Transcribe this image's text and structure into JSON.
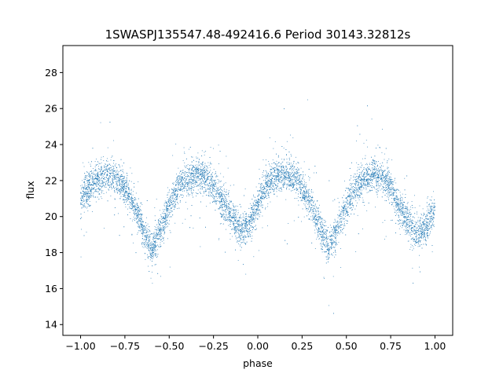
{
  "chart_data": {
    "type": "scatter",
    "title": "1SWASPJ135547.48-492416.6 Period 30143.32812s",
    "xlabel": "phase",
    "ylabel": "flux",
    "xlim": [
      -1.1,
      1.1
    ],
    "ylim": [
      13.4,
      29.5
    ],
    "xticks": [
      -1.0,
      -0.75,
      -0.5,
      -0.25,
      0.0,
      0.25,
      0.5,
      0.75,
      1.0
    ],
    "xtick_labels": [
      "−1.00",
      "−0.75",
      "−0.50",
      "−0.25",
      "0.00",
      "0.25",
      "0.50",
      "0.75",
      "1.00"
    ],
    "yticks": [
      14,
      16,
      18,
      20,
      22,
      24,
      26,
      28
    ],
    "ytick_labels": [
      "14",
      "16",
      "18",
      "20",
      "22",
      "24",
      "26",
      "28"
    ],
    "grid": false,
    "series": [
      {
        "color": "#1f77b4",
        "profile": {
          "x": [
            -1.0,
            -0.95,
            -0.9,
            -0.85,
            -0.8,
            -0.75,
            -0.7,
            -0.65,
            -0.6,
            -0.55,
            -0.5,
            -0.45,
            -0.4,
            -0.35,
            -0.3,
            -0.25,
            -0.2,
            -0.15,
            -0.1,
            -0.05,
            0.0,
            0.05,
            0.1,
            0.15,
            0.2,
            0.25,
            0.3,
            0.35,
            0.4,
            0.45,
            0.5,
            0.55,
            0.6,
            0.65,
            0.7,
            0.75,
            0.8,
            0.85,
            0.9,
            0.95,
            1.0
          ],
          "y": [
            21.0,
            21.6,
            22.1,
            22.3,
            22.2,
            21.6,
            20.6,
            19.4,
            18.2,
            19.2,
            20.6,
            21.6,
            22.1,
            22.3,
            22.2,
            21.7,
            20.8,
            20.0,
            19.2,
            19.5,
            20.8,
            21.7,
            22.2,
            22.4,
            22.2,
            21.6,
            20.7,
            19.5,
            18.2,
            19.3,
            20.6,
            21.6,
            22.1,
            22.3,
            22.2,
            21.6,
            20.6,
            19.6,
            19.0,
            19.4,
            20.5
          ]
        },
        "scatter_sigma": 0.45,
        "point_count": 9000
      }
    ]
  }
}
